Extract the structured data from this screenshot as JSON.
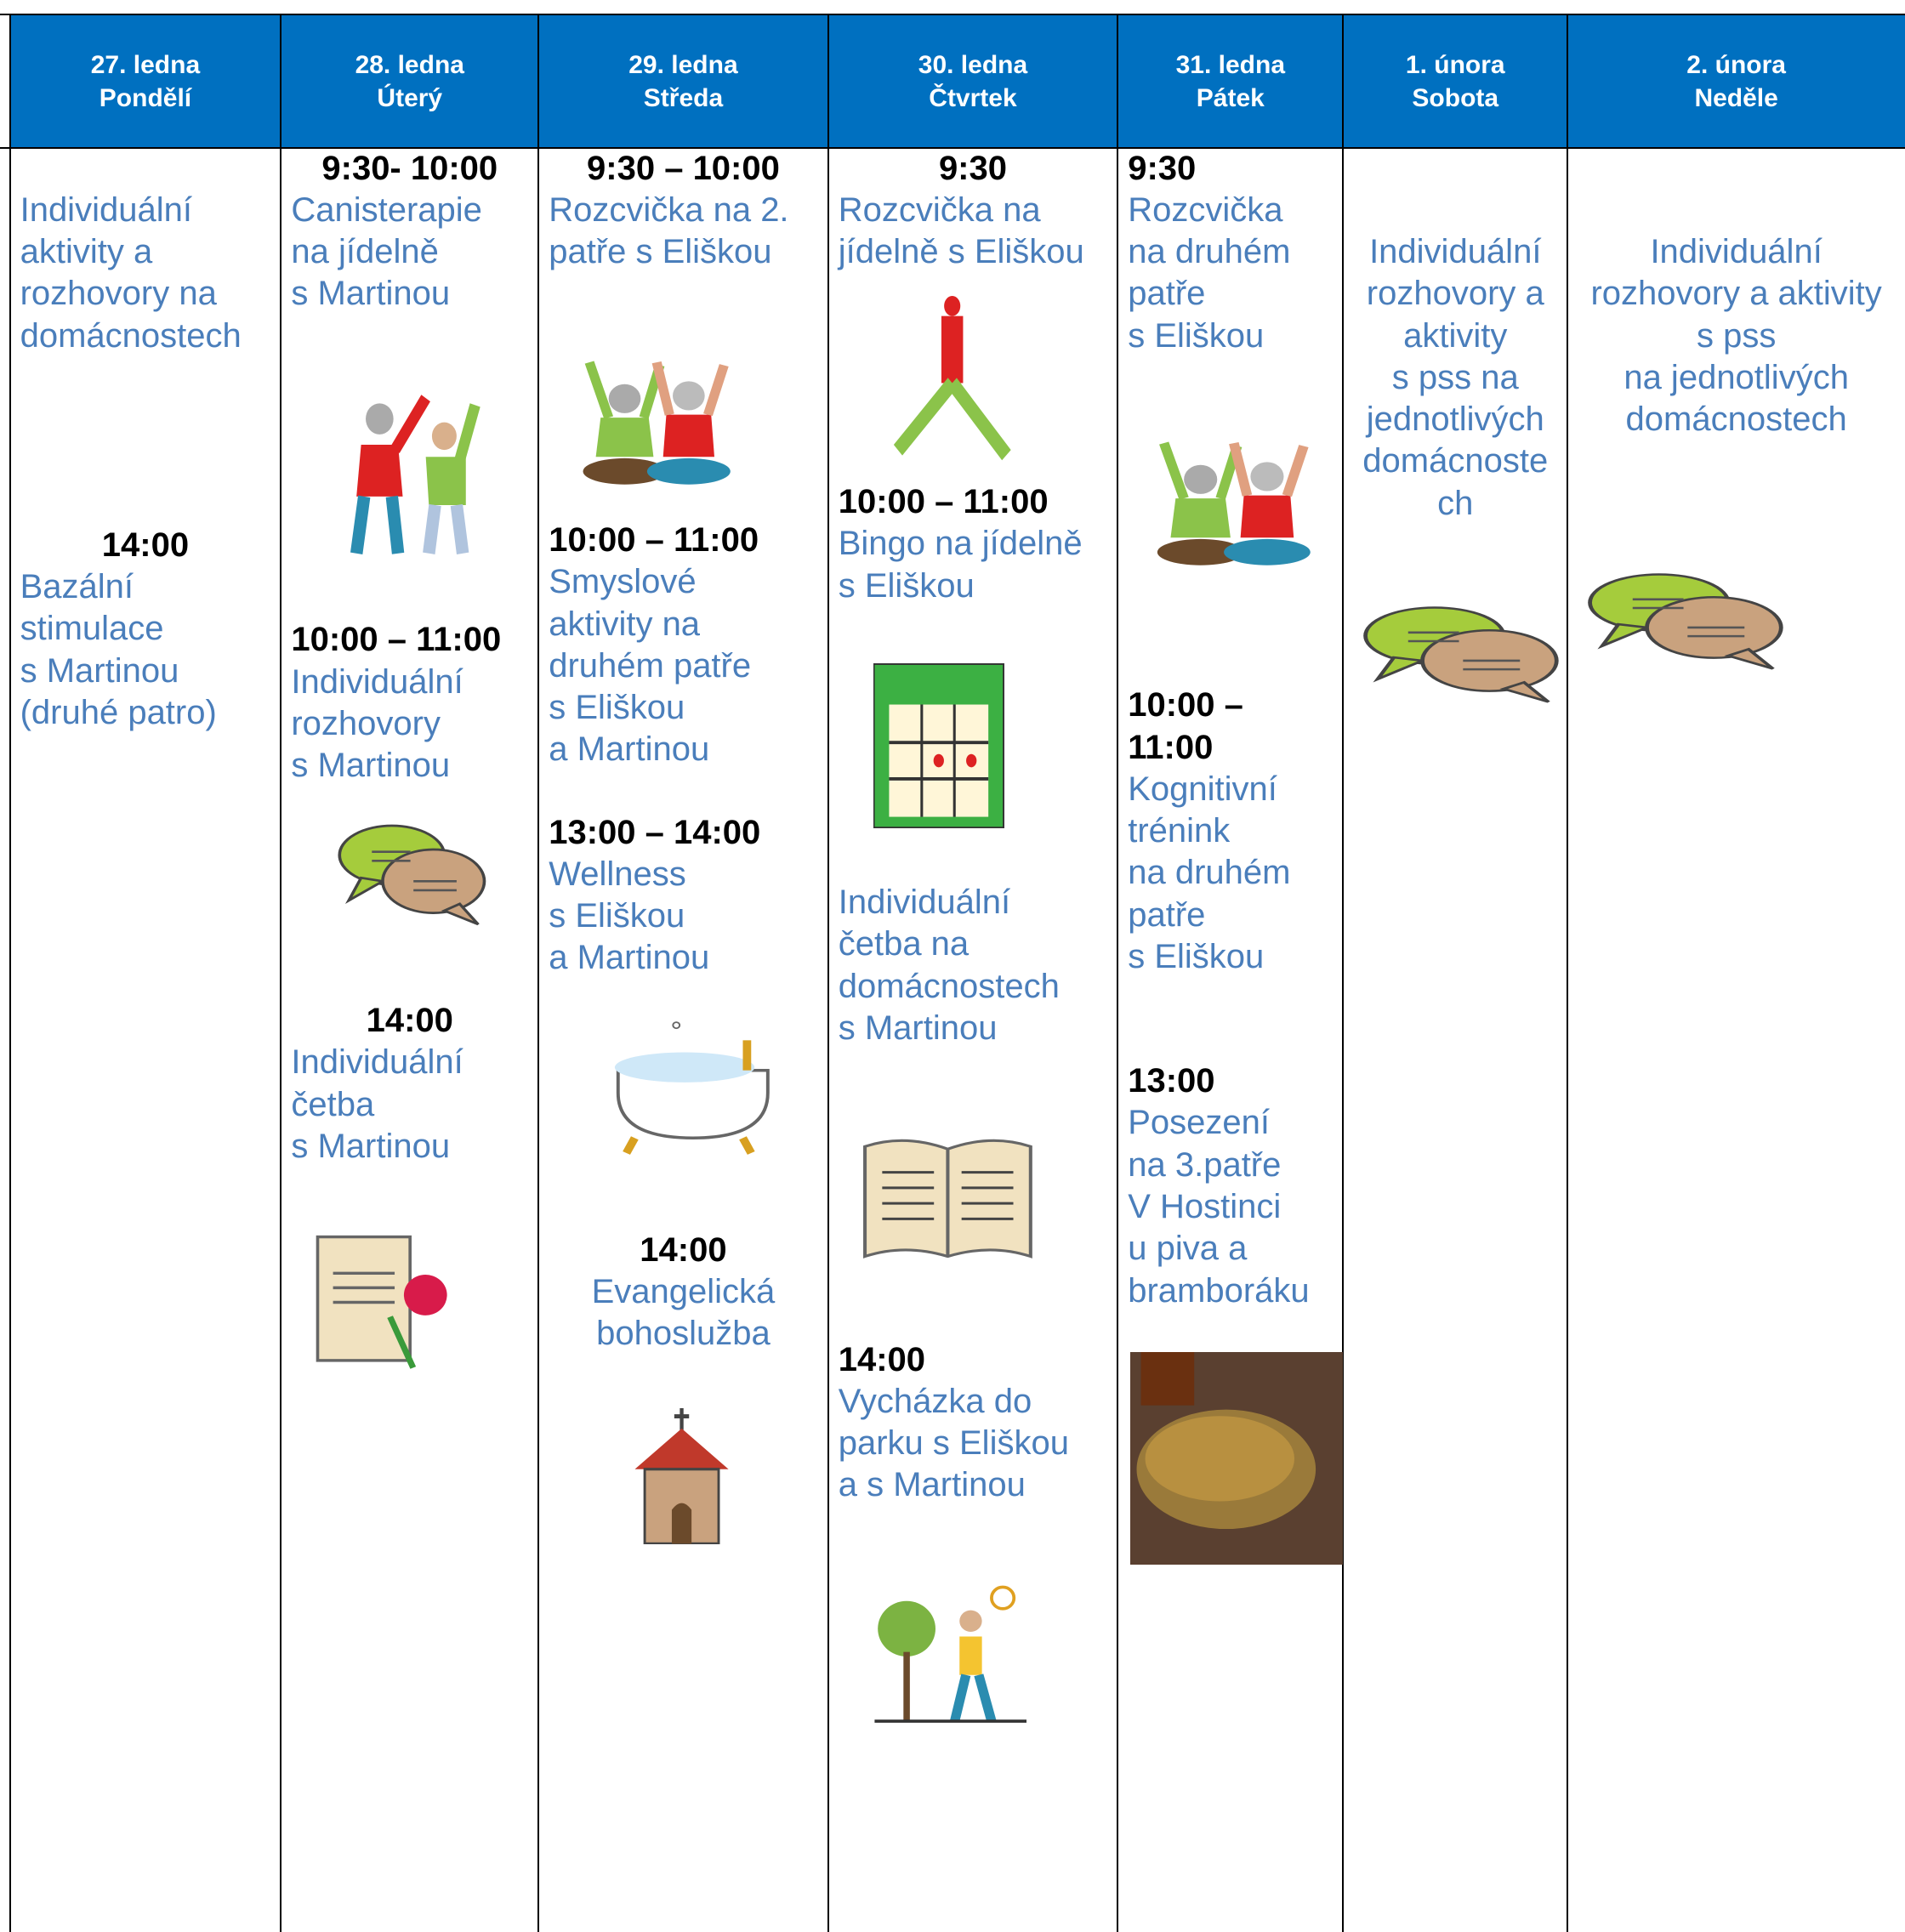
{
  "days": [
    {
      "date": "27. ledna",
      "day": "Pondělí",
      "items": [
        {
          "time": [],
          "lines": [
            "Individuální",
            "aktivity a",
            "rozhovory na",
            "domácnostech"
          ]
        },
        {
          "time": [
            "14:00"
          ],
          "lines": [
            "Bazální",
            "stimulace",
            "s Martinou",
            "(druhé patro)"
          ]
        }
      ]
    },
    {
      "date": "28. ledna",
      "day": "Úterý",
      "items": [
        {
          "time": [
            "9:30- 10:00"
          ],
          "lines": [
            "Canisterapie",
            "na jídelně",
            "s Martinou"
          ]
        },
        {
          "time": [
            "10:00 – 11:00"
          ],
          "lines": [
            "Individuální",
            "rozhovory",
            "s Martinou"
          ]
        },
        {
          "time": [
            "14:00"
          ],
          "lines": [
            "Individuální",
            "četba",
            "s Martinou"
          ]
        }
      ]
    },
    {
      "date": "29. ledna",
      "day": "Středa",
      "items": [
        {
          "time": [
            "9:30 – 10:00"
          ],
          "lines": [
            "Rozcvička na 2.",
            "patře s Eliškou"
          ]
        },
        {
          "time": [
            "10:00 – 11:00"
          ],
          "lines": [
            "Smyslové",
            "aktivity na",
            "druhém patře",
            "s Eliškou",
            "a Martinou"
          ]
        },
        {
          "time": [
            "13:00 – 14:00"
          ],
          "lines": [
            "Wellness",
            "s Eliškou",
            "a Martinou"
          ]
        },
        {
          "time": [
            "14:00"
          ],
          "lines": [
            "Evangelická",
            "bohoslužba"
          ]
        }
      ]
    },
    {
      "date": "30. ledna",
      "day": "Čtvrtek",
      "items": [
        {
          "time": [
            "9:30"
          ],
          "lines": [
            "Rozcvička na",
            "jídelně s Eliškou"
          ]
        },
        {
          "time": [
            "10:00 – 11:00"
          ],
          "lines": [
            "Bingo na jídelně",
            "s Eliškou"
          ]
        },
        {
          "time": [],
          "lines": [
            "Individuální",
            "četba na",
            "domácnostech",
            "s Martinou"
          ]
        },
        {
          "time": [
            "14:00"
          ],
          "lines": [
            "Vycházka do",
            "parku s Eliškou",
            "a s Martinou"
          ]
        }
      ]
    },
    {
      "date": "31. ledna",
      "day": "Pátek",
      "items": [
        {
          "time": [
            "9:30"
          ],
          "lines": [
            "Rozcvička",
            "na druhém",
            "patře",
            "s Eliškou"
          ]
        },
        {
          "time": [
            "10:00 –",
            "11:00"
          ],
          "lines": [
            "Kognitivní",
            "trénink",
            "na druhém",
            "patře",
            "s Eliškou"
          ]
        },
        {
          "time": [
            "13:00"
          ],
          "lines": [
            "Posezení",
            "na 3.patře",
            "V Hostinci",
            "u piva a",
            "bramboráku"
          ]
        }
      ]
    },
    {
      "date": "1. února",
      "day": "Sobota",
      "items": [
        {
          "time": [],
          "lines": [
            "Individuální",
            "rozhovory a",
            "aktivity",
            "s pss na",
            "jednotlivých",
            "domácnoste",
            "ch"
          ]
        }
      ]
    },
    {
      "date": "2. února",
      "day": "Neděle",
      "items": [
        {
          "time": [],
          "lines": [
            "Individuální",
            "rozhovory a aktivity",
            "s pss",
            "na jednotlivých",
            "domácnostech"
          ]
        }
      ]
    }
  ]
}
